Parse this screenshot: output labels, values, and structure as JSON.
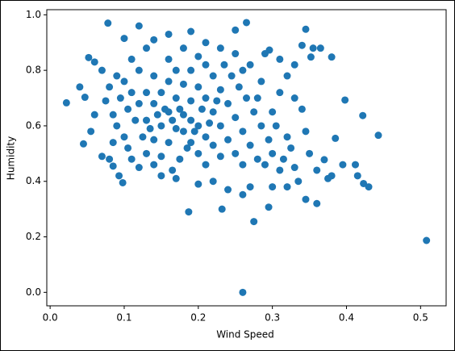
{
  "chart_data": {
    "type": "scatter",
    "x_label": "Wind Speed",
    "y_label": "Humidity",
    "color": "#1f77b4",
    "xlim": [
      -0.0045,
      0.5345
    ],
    "ylim": [
      -0.0485,
      1.0185
    ],
    "xticks": [
      {
        "value": 0,
        "label": "0.0"
      },
      {
        "value": 0.1,
        "label": "0.1"
      },
      {
        "value": 0.2,
        "label": "0.2"
      },
      {
        "value": 0.3,
        "label": "0.3"
      },
      {
        "value": 0.4,
        "label": "0.4"
      },
      {
        "value": 0.5,
        "label": "0.5"
      }
    ],
    "yticks": [
      {
        "value": 0,
        "label": "0.0"
      },
      {
        "value": 0.2,
        "label": "0.2"
      },
      {
        "value": 0.4,
        "label": "0.4"
      },
      {
        "value": 0.6,
        "label": "0.6"
      },
      {
        "value": 0.8,
        "label": "0.8"
      },
      {
        "value": 1,
        "label": "1.0"
      }
    ],
    "x": [
      0.508,
      0.26,
      0.022,
      0.443,
      0.275,
      0.187,
      0.078,
      0.265,
      0.12,
      0.345,
      0.38,
      0.398,
      0.422,
      0.423,
      0.412,
      0.36,
      0.345,
      0.295,
      0.26,
      0.232,
      0.045,
      0.047,
      0.052,
      0.098,
      0.093,
      0.38,
      0.385,
      0.37,
      0.36,
      0.355,
      0.365,
      0.34,
      0.352,
      0.33,
      0.34,
      0.345,
      0.35,
      0.335,
      0.32,
      0.3,
      0.285,
      0.29,
      0.31,
      0.296,
      0.25,
      0.19,
      0.16,
      0.14,
      0.1,
      0.07,
      0.06,
      0.04,
      0.055,
      0.06,
      0.07,
      0.08,
      0.085,
      0.15,
      0.17,
      0.2,
      0.22,
      0.24,
      0.27,
      0.43,
      0.415,
      0.375,
      0.395,
      0.33,
      0.32,
      0.305,
      0.3,
      0.31,
      0.32,
      0.33,
      0.27,
      0.23,
      0.21,
      0.18,
      0.13,
      0.11,
      0.09,
      0.08,
      0.075,
      0.085,
      0.09,
      0.1,
      0.105,
      0.11,
      0.12,
      0.13,
      0.14,
      0.15,
      0.16,
      0.17,
      0.18,
      0.19,
      0.2,
      0.21,
      0.22,
      0.23,
      0.24,
      0.25,
      0.26,
      0.27,
      0.28,
      0.29,
      0.26,
      0.25,
      0.24,
      0.23,
      0.22,
      0.21,
      0.2,
      0.19,
      0.18,
      0.17,
      0.16,
      0.15,
      0.14,
      0.13,
      0.12,
      0.11,
      0.1,
      0.12,
      0.14,
      0.16,
      0.15,
      0.14,
      0.13,
      0.17,
      0.16,
      0.18,
      0.19,
      0.2,
      0.21,
      0.22,
      0.23,
      0.2,
      0.21,
      0.19,
      0.175,
      0.165,
      0.155,
      0.145,
      0.135,
      0.125,
      0.115,
      0.105,
      0.095,
      0.085,
      0.245,
      0.255,
      0.265,
      0.275,
      0.285,
      0.295,
      0.28,
      0.26,
      0.25,
      0.235,
      0.225,
      0.215,
      0.205,
      0.195,
      0.185,
      0.175,
      0.165,
      0.315,
      0.325,
      0.3,
      0.31
    ],
    "values": [
      0.187,
      0.0,
      0.683,
      0.566,
      0.255,
      0.29,
      0.97,
      0.972,
      0.96,
      0.948,
      0.848,
      0.693,
      0.637,
      0.392,
      0.46,
      0.32,
      0.335,
      0.307,
      0.352,
      0.3,
      0.535,
      0.703,
      0.846,
      0.395,
      0.42,
      0.42,
      0.555,
      0.478,
      0.44,
      0.88,
      0.88,
      0.89,
      0.848,
      0.7,
      0.66,
      0.58,
      0.5,
      0.4,
      0.38,
      0.38,
      0.76,
      0.86,
      0.84,
      0.873,
      0.945,
      0.94,
      0.93,
      0.91,
      0.915,
      0.8,
      0.83,
      0.74,
      0.58,
      0.64,
      0.49,
      0.48,
      0.455,
      0.42,
      0.41,
      0.39,
      0.4,
      0.37,
      0.38,
      0.38,
      0.42,
      0.41,
      0.46,
      0.45,
      0.56,
      0.6,
      0.65,
      0.72,
      0.78,
      0.82,
      0.82,
      0.88,
      0.9,
      0.88,
      0.88,
      0.84,
      0.78,
      0.74,
      0.69,
      0.64,
      0.6,
      0.56,
      0.52,
      0.48,
      0.45,
      0.5,
      0.55,
      0.6,
      0.65,
      0.7,
      0.75,
      0.8,
      0.85,
      0.82,
      0.78,
      0.73,
      0.68,
      0.63,
      0.58,
      0.53,
      0.48,
      0.46,
      0.46,
      0.5,
      0.55,
      0.6,
      0.65,
      0.7,
      0.74,
      0.69,
      0.64,
      0.59,
      0.54,
      0.49,
      0.46,
      0.62,
      0.68,
      0.72,
      0.76,
      0.8,
      0.78,
      0.76,
      0.72,
      0.68,
      0.72,
      0.8,
      0.84,
      0.58,
      0.54,
      0.5,
      0.46,
      0.53,
      0.49,
      0.6,
      0.56,
      0.62,
      0.66,
      0.62,
      0.66,
      0.64,
      0.59,
      0.56,
      0.62,
      0.66,
      0.7,
      0.54,
      0.78,
      0.74,
      0.7,
      0.65,
      0.6,
      0.55,
      0.7,
      0.8,
      0.86,
      0.82,
      0.69,
      0.61,
      0.66,
      0.58,
      0.52,
      0.48,
      0.44,
      0.48,
      0.52,
      0.5,
      0.44
    ]
  }
}
